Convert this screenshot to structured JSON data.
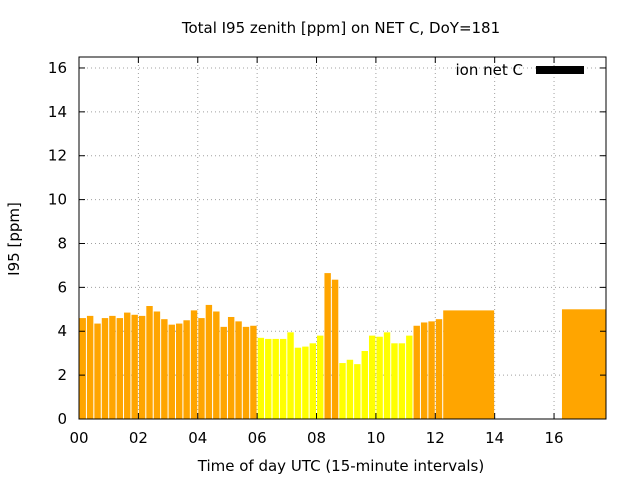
{
  "chart_data": {
    "type": "bar",
    "title": "Total I95 zenith [ppm] on NET C, DoY=181",
    "xlabel": "Time of day UTC (15-minute intervals)",
    "ylabel": "I95 [ppm]",
    "xlim": [
      0,
      17.75
    ],
    "ylim": [
      0,
      16.5
    ],
    "xticks": [
      0,
      2,
      4,
      6,
      8,
      10,
      12,
      14,
      16
    ],
    "xtick_labels": [
      "00",
      "02",
      "04",
      "06",
      "08",
      "10",
      "12",
      "14",
      "16"
    ],
    "yticks": [
      0,
      2,
      4,
      6,
      8,
      10,
      12,
      14,
      16
    ],
    "ytick_labels": [
      "0",
      "2",
      "4",
      "6",
      "8",
      "10",
      "12",
      "14",
      "16"
    ],
    "grid": true,
    "legend": {
      "label": "ion net C",
      "color": "#000000",
      "position": "top-right"
    },
    "colors": {
      "orange": "#ffa500",
      "yellow": "#ffff00"
    },
    "bars": [
      {
        "x": 0.0,
        "w": 0.25,
        "v": 4.6,
        "c": "orange"
      },
      {
        "x": 0.25,
        "w": 0.25,
        "v": 4.7,
        "c": "orange"
      },
      {
        "x": 0.5,
        "w": 0.25,
        "v": 4.35,
        "c": "orange"
      },
      {
        "x": 0.75,
        "w": 0.25,
        "v": 4.6,
        "c": "orange"
      },
      {
        "x": 1.0,
        "w": 0.25,
        "v": 4.7,
        "c": "orange"
      },
      {
        "x": 1.25,
        "w": 0.25,
        "v": 4.6,
        "c": "orange"
      },
      {
        "x": 1.5,
        "w": 0.25,
        "v": 4.85,
        "c": "orange"
      },
      {
        "x": 1.75,
        "w": 0.25,
        "v": 4.75,
        "c": "orange"
      },
      {
        "x": 2.0,
        "w": 0.25,
        "v": 4.7,
        "c": "orange"
      },
      {
        "x": 2.25,
        "w": 0.25,
        "v": 5.15,
        "c": "orange"
      },
      {
        "x": 2.5,
        "w": 0.25,
        "v": 4.9,
        "c": "orange"
      },
      {
        "x": 2.75,
        "w": 0.25,
        "v": 4.55,
        "c": "orange"
      },
      {
        "x": 3.0,
        "w": 0.25,
        "v": 4.3,
        "c": "orange"
      },
      {
        "x": 3.25,
        "w": 0.25,
        "v": 4.35,
        "c": "orange"
      },
      {
        "x": 3.5,
        "w": 0.25,
        "v": 4.5,
        "c": "orange"
      },
      {
        "x": 3.75,
        "w": 0.25,
        "v": 4.95,
        "c": "orange"
      },
      {
        "x": 4.0,
        "w": 0.25,
        "v": 4.6,
        "c": "orange"
      },
      {
        "x": 4.25,
        "w": 0.25,
        "v": 5.2,
        "c": "orange"
      },
      {
        "x": 4.5,
        "w": 0.25,
        "v": 4.9,
        "c": "orange"
      },
      {
        "x": 4.75,
        "w": 0.25,
        "v": 4.2,
        "c": "orange"
      },
      {
        "x": 5.0,
        "w": 0.25,
        "v": 4.65,
        "c": "orange"
      },
      {
        "x": 5.25,
        "w": 0.25,
        "v": 4.45,
        "c": "orange"
      },
      {
        "x": 5.5,
        "w": 0.25,
        "v": 4.2,
        "c": "orange"
      },
      {
        "x": 5.75,
        "w": 0.25,
        "v": 4.25,
        "c": "orange"
      },
      {
        "x": 6.0,
        "w": 0.25,
        "v": 3.7,
        "c": "yellow"
      },
      {
        "x": 6.25,
        "w": 0.25,
        "v": 3.65,
        "c": "yellow"
      },
      {
        "x": 6.5,
        "w": 0.25,
        "v": 3.65,
        "c": "yellow"
      },
      {
        "x": 6.75,
        "w": 0.25,
        "v": 3.65,
        "c": "yellow"
      },
      {
        "x": 7.0,
        "w": 0.25,
        "v": 3.95,
        "c": "yellow"
      },
      {
        "x": 7.25,
        "w": 0.25,
        "v": 3.25,
        "c": "yellow"
      },
      {
        "x": 7.5,
        "w": 0.25,
        "v": 3.3,
        "c": "yellow"
      },
      {
        "x": 7.75,
        "w": 0.25,
        "v": 3.45,
        "c": "yellow"
      },
      {
        "x": 8.0,
        "w": 0.25,
        "v": 3.8,
        "c": "yellow"
      },
      {
        "x": 8.25,
        "w": 0.25,
        "v": 6.65,
        "c": "orange"
      },
      {
        "x": 8.5,
        "w": 0.25,
        "v": 6.35,
        "c": "orange"
      },
      {
        "x": 8.75,
        "w": 0.25,
        "v": 2.55,
        "c": "yellow"
      },
      {
        "x": 9.0,
        "w": 0.25,
        "v": 2.7,
        "c": "yellow"
      },
      {
        "x": 9.25,
        "w": 0.25,
        "v": 2.5,
        "c": "yellow"
      },
      {
        "x": 9.5,
        "w": 0.25,
        "v": 3.1,
        "c": "yellow"
      },
      {
        "x": 9.75,
        "w": 0.25,
        "v": 3.8,
        "c": "yellow"
      },
      {
        "x": 10.0,
        "w": 0.25,
        "v": 3.75,
        "c": "yellow"
      },
      {
        "x": 10.25,
        "w": 0.25,
        "v": 3.95,
        "c": "yellow"
      },
      {
        "x": 10.5,
        "w": 0.25,
        "v": 3.45,
        "c": "yellow"
      },
      {
        "x": 10.75,
        "w": 0.25,
        "v": 3.45,
        "c": "yellow"
      },
      {
        "x": 11.0,
        "w": 0.25,
        "v": 3.8,
        "c": "yellow"
      },
      {
        "x": 11.25,
        "w": 0.25,
        "v": 4.25,
        "c": "orange"
      },
      {
        "x": 11.5,
        "w": 0.25,
        "v": 4.4,
        "c": "orange"
      },
      {
        "x": 11.75,
        "w": 0.25,
        "v": 4.45,
        "c": "orange"
      },
      {
        "x": 12.0,
        "w": 0.25,
        "v": 4.55,
        "c": "orange"
      },
      {
        "x": 12.25,
        "w": 1.75,
        "v": 4.95,
        "c": "orange"
      },
      {
        "x": 16.25,
        "w": 1.5,
        "v": 5.0,
        "c": "orange"
      }
    ]
  }
}
